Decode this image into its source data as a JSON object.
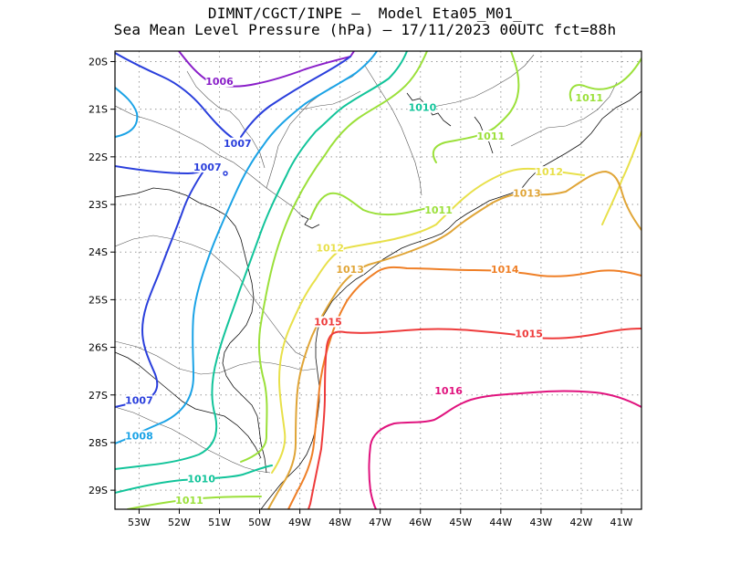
{
  "header": {
    "line1": "DIMNT/CGCT/INPE —  Model Eta05_M01_",
    "line2": "Sea Mean Level Pressure (hPa) — 17/11/2023 00UTC fct=88h"
  },
  "axes": {
    "lon_labels": [
      "53W",
      "52W",
      "51W",
      "50W",
      "49W",
      "48W",
      "47W",
      "46W",
      "45W",
      "44W",
      "43W",
      "42W",
      "41W"
    ],
    "lat_labels": [
      "20S",
      "21S",
      "22S",
      "23S",
      "24S",
      "25S",
      "26S",
      "27S",
      "28S",
      "29S"
    ]
  },
  "isobars": [
    {
      "name": "isobar-1006",
      "color": "#8a1fc9",
      "labels": [
        {
          "text": "1006",
          "lon": -51.0,
          "lat": -20.45
        }
      ]
    },
    {
      "name": "isobar-1007",
      "color": "#2a3fdc",
      "labels": [
        {
          "text": "1007",
          "lon": -50.55,
          "lat": -21.75
        },
        {
          "text": "1007",
          "lon": -51.3,
          "lat": -22.25
        },
        {
          "text": "1007",
          "lon": -53.0,
          "lat": -27.15
        }
      ]
    },
    {
      "name": "isobar-1008",
      "color": "#1ba3e6",
      "labels": [
        {
          "text": "1008",
          "lon": -53.0,
          "lat": -27.9
        }
      ]
    },
    {
      "name": "isobar-1010",
      "color": "#12c49a",
      "labels": [
        {
          "text": "1010",
          "lon": -45.95,
          "lat": -21.0
        },
        {
          "text": "1010",
          "lon": -51.45,
          "lat": -28.8
        }
      ]
    },
    {
      "name": "isobar-1011",
      "color": "#9be03a",
      "labels": [
        {
          "text": "1011",
          "lon": -44.25,
          "lat": -21.6
        },
        {
          "text": "1011",
          "lon": -41.8,
          "lat": -20.8
        },
        {
          "text": "1011",
          "lon": -45.55,
          "lat": -23.15
        },
        {
          "text": "1011",
          "lon": -51.75,
          "lat": -29.25
        }
      ]
    },
    {
      "name": "isobar-1012",
      "color": "#e8e04a",
      "labels": [
        {
          "text": "1012",
          "lon": -42.8,
          "lat": -22.35
        },
        {
          "text": "1012",
          "lon": -48.25,
          "lat": -23.95
        }
      ]
    },
    {
      "name": "isobar-1013",
      "color": "#e0a537",
      "labels": [
        {
          "text": "1013",
          "lon": -43.35,
          "lat": -22.8
        },
        {
          "text": "1013",
          "lon": -47.75,
          "lat": -24.4
        }
      ]
    },
    {
      "name": "isobar-1014",
      "color": "#ef7f26",
      "labels": [
        {
          "text": "1014",
          "lon": -43.9,
          "lat": -24.4
        }
      ]
    },
    {
      "name": "isobar-1015",
      "color": "#ee3b3b",
      "labels": [
        {
          "text": "1015",
          "lon": -48.3,
          "lat": -25.5
        },
        {
          "text": "1015",
          "lon": -43.3,
          "lat": -25.75
        }
      ]
    },
    {
      "name": "isobar-1016",
      "color": "#e0137e",
      "labels": [
        {
          "text": "1016",
          "lon": -45.3,
          "lat": -26.95
        }
      ]
    }
  ]
}
